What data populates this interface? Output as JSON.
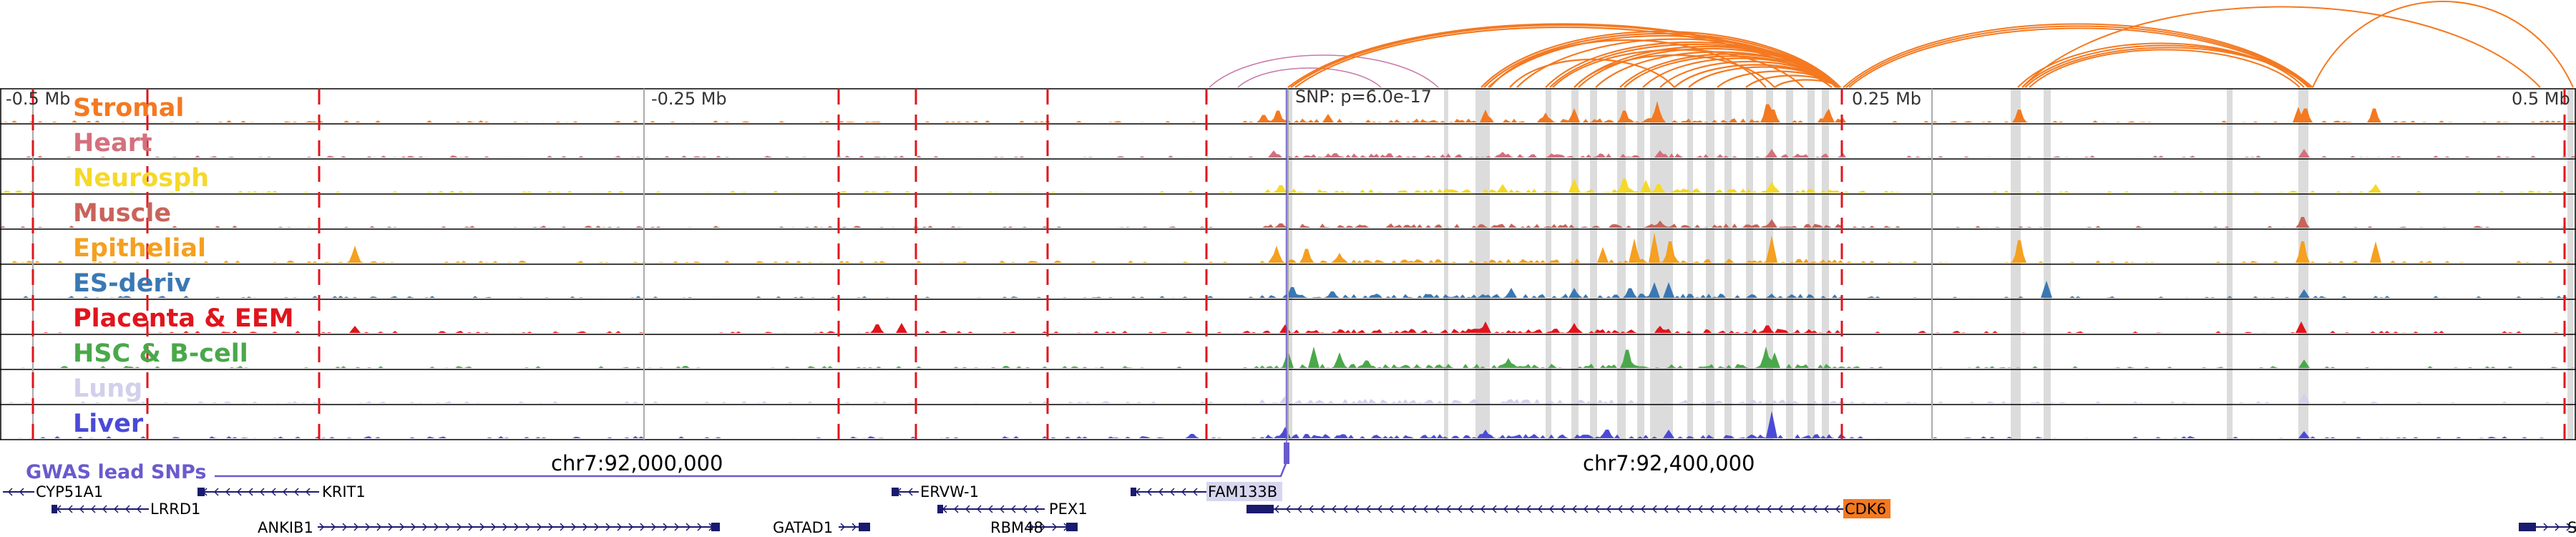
{
  "scale_labels": [
    "-0.5 Mb",
    "-0.25 Mb",
    "0.25 Mb",
    "0.5 Mb"
  ],
  "snp_annotation": "SNP: p=6.0e-17",
  "tracks": [
    {
      "name": "Stromal",
      "color": "#f47920"
    },
    {
      "name": "Heart",
      "color": "#d4707d"
    },
    {
      "name": "Neurosph",
      "color": "#f5d929"
    },
    {
      "name": "Muscle",
      "color": "#c8645a"
    },
    {
      "name": "Epithelial",
      "color": "#f5a020"
    },
    {
      "name": "ES-deriv",
      "color": "#3a78b4"
    },
    {
      "name": "Placenta & EEM",
      "color": "#e0151d"
    },
    {
      "name": "HSC & B-cell",
      "color": "#4aa84a"
    },
    {
      "name": "Lung",
      "color": "#d2d0ea"
    },
    {
      "name": "Liver",
      "color": "#4a4ad8"
    }
  ],
  "gwas_label": "GWAS lead SNPs",
  "gwas_color": "#6a5acd",
  "coordinate_labels": [
    "chr7:92,000,000",
    "chr7:92,400,000"
  ],
  "genes": [
    {
      "name": "CYP51A1",
      "strand": "-"
    },
    {
      "name": "KRIT1",
      "strand": "-"
    },
    {
      "name": "LRRD1",
      "strand": "-"
    },
    {
      "name": "ANKIB1",
      "strand": "+"
    },
    {
      "name": "GATAD1",
      "strand": "+"
    },
    {
      "name": "ERVW-1",
      "strand": "-"
    },
    {
      "name": "PEX1",
      "strand": "-"
    },
    {
      "name": "RBM48",
      "strand": "+"
    },
    {
      "name": "FAM133B",
      "strand": "-"
    },
    {
      "name": "CDK6",
      "strand": "-"
    },
    {
      "name": "S",
      "strand": "+"
    }
  ],
  "colors": {
    "arc": "#f47920",
    "arc_alt": "#c878a8",
    "red_marker": "#e0151d",
    "highlight": "#dcdcdc",
    "gene": "#1a1a6e"
  }
}
